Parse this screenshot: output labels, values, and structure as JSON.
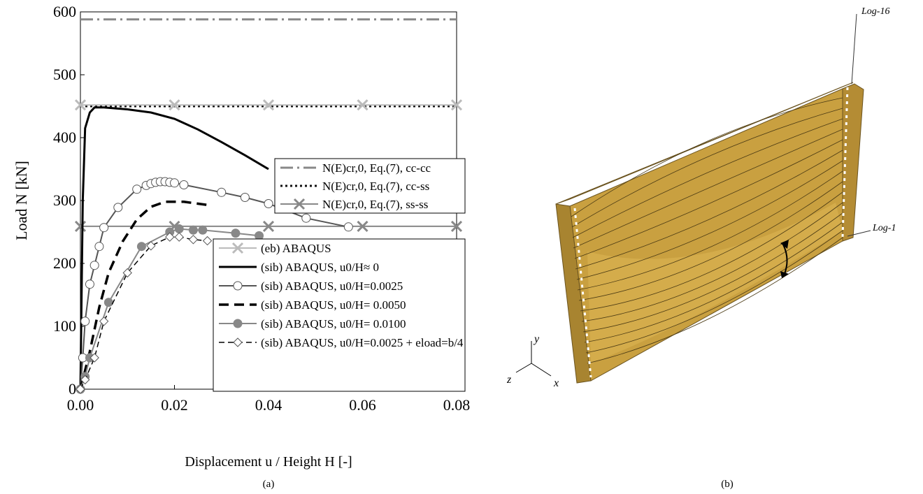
{
  "chart_data": {
    "type": "line",
    "xlabel": "Displacement u / Height H  [-]",
    "ylabel": "Load N [kN]",
    "xlim": [
      0,
      0.08
    ],
    "ylim": [
      0,
      600
    ],
    "xticks": [
      {
        "value": 0,
        "label": "0.00"
      },
      {
        "value": 0.02,
        "label": "0.02"
      },
      {
        "value": 0.04,
        "label": "0.04"
      },
      {
        "value": 0.06,
        "label": "0.06"
      },
      {
        "value": 0.08,
        "label": "0.08"
      }
    ],
    "yticks": [
      0,
      100,
      200,
      300,
      400,
      500,
      600
    ],
    "series": [
      {
        "name": "N(E)cr,0, Eq.(7), cc-cc",
        "color": "#888888",
        "dash": "dashdot",
        "marker": null,
        "legend": 1,
        "x": [
          0,
          0.08
        ],
        "values": [
          588,
          588
        ]
      },
      {
        "name": "N(E)cr,0, Eq.(7), cc-ss",
        "color": "#111111",
        "dash": "dot",
        "marker": null,
        "legend": 1,
        "x": [
          0,
          0.08
        ],
        "values": [
          450,
          450
        ]
      },
      {
        "name": "N(E)cr,0, Eq.(7), ss-ss",
        "color": "#888888",
        "dash": "solid",
        "marker": "x",
        "legend": 1,
        "x": [
          0,
          0.02,
          0.04,
          0.06,
          0.08
        ],
        "values": [
          259,
          259,
          259,
          259,
          259
        ]
      },
      {
        "name": "(eb) ABAQUS",
        "color": "#bbbbbb",
        "dash": "solid",
        "marker": "x",
        "legend": 2,
        "x": [
          0,
          0.02,
          0.04,
          0.06,
          0.08
        ],
        "values": [
          452,
          452,
          452,
          452,
          452
        ]
      },
      {
        "name": "(sib) ABAQUS, u0/H≈ 0",
        "color": "#000000",
        "dash": "bold",
        "marker": null,
        "legend": 2,
        "x": [
          0,
          0.0005,
          0.001,
          0.002,
          0.003,
          0.005,
          0.01,
          0.015,
          0.02,
          0.025,
          0.03,
          0.035,
          0.04
        ],
        "values": [
          0,
          300,
          415,
          440,
          448,
          448,
          445,
          440,
          430,
          413,
          393,
          372,
          350
        ]
      },
      {
        "name": "(sib) ABAQUS, u0/H=0.0025",
        "color": "#555555",
        "dash": "solid",
        "marker": "open-circle",
        "legend": 2,
        "x": [
          0,
          0.0005,
          0.001,
          0.002,
          0.003,
          0.004,
          0.005,
          0.008,
          0.012,
          0.014,
          0.015,
          0.016,
          0.017,
          0.018,
          0.019,
          0.02,
          0.022,
          0.03,
          0.035,
          0.04,
          0.048,
          0.057
        ],
        "values": [
          0,
          50,
          108,
          167,
          197,
          227,
          257,
          289,
          318,
          324,
          327,
          329,
          330,
          330,
          329,
          328,
          325,
          313,
          305,
          295,
          272,
          258
        ]
      },
      {
        "name": "(sib) ABAQUS, u0/H= 0.0050",
        "color": "#000000",
        "dash": "dash",
        "marker": null,
        "legend": 2,
        "x": [
          0,
          0.002,
          0.004,
          0.006,
          0.009,
          0.012,
          0.015,
          0.018,
          0.022,
          0.027
        ],
        "values": [
          0,
          60,
          130,
          185,
          235,
          270,
          290,
          298,
          298,
          293
        ]
      },
      {
        "name": "(sib) ABAQUS, u0/H= 0.0100",
        "color": "#888888",
        "dash": "solid",
        "marker": "circle",
        "legend": 2,
        "x": [
          0,
          0.001,
          0.002,
          0.006,
          0.013,
          0.019,
          0.021,
          0.024,
          0.026,
          0.033,
          0.038
        ],
        "values": [
          0,
          20,
          50,
          138,
          227,
          250,
          255,
          253,
          253,
          248,
          244
        ]
      },
      {
        "name": "(sib) ABAQUS, u0/H=0.0025 + eload=b/4",
        "color": "#000000",
        "dash": "thindash",
        "marker": "diamond",
        "legend": 2,
        "x": [
          0,
          0.001,
          0.003,
          0.005,
          0.01,
          0.015,
          0.019,
          0.021,
          0.024,
          0.027
        ],
        "values": [
          0,
          15,
          50,
          108,
          185,
          228,
          242,
          242,
          238,
          236
        ]
      }
    ]
  },
  "captions": [
    "(a)",
    "(b)"
  ],
  "model": {
    "labels": [
      "Log-16",
      "Log-1"
    ],
    "axes": [
      "y",
      "z",
      "x"
    ]
  }
}
